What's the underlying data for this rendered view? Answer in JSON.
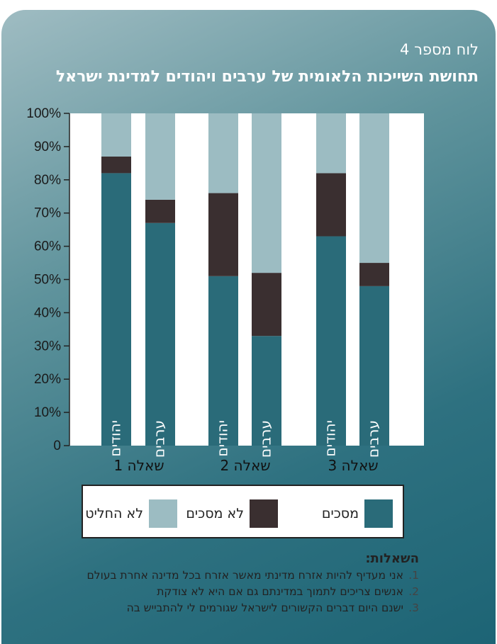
{
  "header": {
    "caption": "לוח מספר 4",
    "title": "תחושת השייכות הלאומית של ערבים ויהודים למדינת ישראל"
  },
  "colors": {
    "agree": "#2a6b79",
    "disagree": "#3a2f30",
    "undecided": "#9cbcc2",
    "plot_background": "#ffffff",
    "panel": "#3d7f8c"
  },
  "legend": [
    {
      "key": "agree",
      "label": "מסכים"
    },
    {
      "key": "disagree",
      "label": "לא מסכים"
    },
    {
      "key": "undecided",
      "label": "לא החליט"
    }
  ],
  "questions": {
    "title": "השאלות:",
    "items": [
      {
        "num": "1.",
        "text": "אני מעדיף להיות אזרח מדינתי מאשר אזרח בכל מדינה אחרת בעולם"
      },
      {
        "num": "2.",
        "text": "אנשים צריכים לתמוך במדינתם גם אם היא לא צודקת"
      },
      {
        "num": "3.",
        "text": "ישנם היום דברים הקשורים לישראל שגורמים לי להתבייש בה"
      }
    ]
  },
  "chart_data": {
    "type": "bar",
    "stacked": true,
    "ylim": [
      0,
      100
    ],
    "y_ticks": [
      "0",
      "10%",
      "20%",
      "30%",
      "40%",
      "50%",
      "60%",
      "70%",
      "80%",
      "90%",
      "100%"
    ],
    "groups": [
      "שאלה 1",
      "שאלה 2",
      "שאלה 3"
    ],
    "bars": [
      {
        "group": "שאלה 1",
        "label": "יהודים",
        "agree": 82,
        "disagree": 5,
        "undecided": 13
      },
      {
        "group": "שאלה 1",
        "label": "ערבים",
        "agree": 67,
        "disagree": 7,
        "undecided": 26
      },
      {
        "group": "שאלה 2",
        "label": "יהודים",
        "agree": 51,
        "disagree": 25,
        "undecided": 24
      },
      {
        "group": "שאלה 2",
        "label": "ערבים",
        "agree": 33,
        "disagree": 19,
        "undecided": 48
      },
      {
        "group": "שאלה 3",
        "label": "יהודים",
        "agree": 63,
        "disagree": 19,
        "undecided": 18
      },
      {
        "group": "שאלה 3",
        "label": "ערבים",
        "agree": 48,
        "disagree": 7,
        "undecided": 45
      }
    ]
  }
}
